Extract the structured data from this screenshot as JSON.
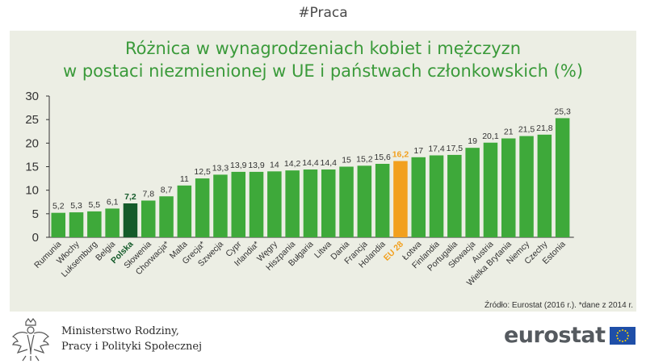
{
  "hashtag": "#Praca",
  "title_line1": "Różnica w wynagrodzeniach kobiet i mężczyzn",
  "title_line2": "w postaci niezmienionej w UE i państwach członkowskich (%)",
  "source_note": "Źródło: Eurostat (2016 r.). *dane z 2014 r.",
  "ministry_line1": "Ministerstwo Rodziny,",
  "ministry_line2": "Pracy i Polityki Społecznej",
  "eurostat_label": "eurostat",
  "colors": {
    "bar": "#3ea93a",
    "highlight_poland": "#145a2a",
    "highlight_eu": "#f2a01e",
    "title": "#3a9a3a",
    "panel": "#eceee4"
  },
  "chart_data": {
    "type": "bar",
    "title": "Różnica w wynagrodzeniach kobiet i mężczyzn w postaci niezmienionej w UE i państwach członkowskich (%)",
    "ylim": [
      0,
      30
    ],
    "yticks": [
      0,
      5,
      10,
      15,
      20,
      25,
      30
    ],
    "grid": false,
    "categories": [
      "Rumunia",
      "Włochy",
      "Luksemburg",
      "Belgia",
      "Polska",
      "Słowenia",
      "Chorwacja*",
      "Malta",
      "Grecja*",
      "Szwecja",
      "Cypr",
      "Irlandia*",
      "Węgry",
      "Hiszpania",
      "Bułgaria",
      "Litwa",
      "Dania",
      "Francja",
      "Holandia",
      "EU 28",
      "Łotwa",
      "Finlandia",
      "Portugalia",
      "Słowacja",
      "Austria",
      "Wielka Brytania",
      "Niemcy",
      "Czechy",
      "Estonia"
    ],
    "values": [
      5.2,
      5.3,
      5.5,
      6.1,
      7.2,
      7.8,
      8.7,
      11,
      12.5,
      13.3,
      13.9,
      13.9,
      14,
      14.2,
      14.4,
      14.4,
      15,
      15.2,
      15.6,
      16.2,
      17,
      17.4,
      17.5,
      19,
      20.1,
      21,
      21.5,
      21.8,
      25.3
    ],
    "value_labels": [
      "5,2",
      "5,3",
      "5,5",
      "6,1",
      "7,2",
      "7,8",
      "8,7",
      "11",
      "12,5",
      "13,3",
      "13,9",
      "13,9",
      "14",
      "14,2",
      "14,4",
      "14,4",
      "15",
      "15,2",
      "15,6",
      "16,2",
      "17",
      "17,4",
      "17,5",
      "19",
      "20,1",
      "21",
      "21,5",
      "21,8",
      "25,3"
    ],
    "highlight": {
      "Polska": "poland",
      "EU 28": "eu"
    }
  }
}
